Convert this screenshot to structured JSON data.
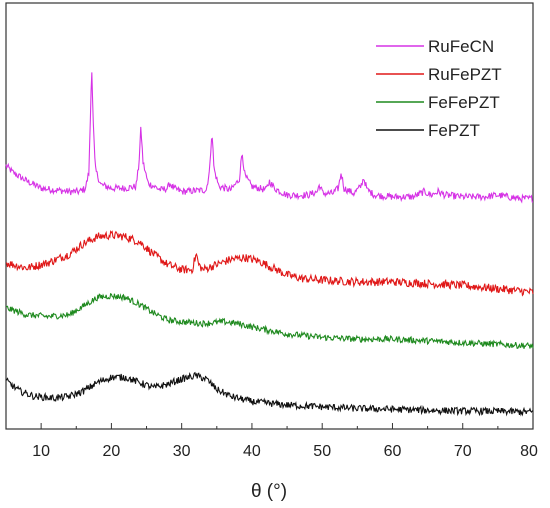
{
  "chart_data": {
    "type": "line",
    "title": "",
    "xlabel": "θ (°)",
    "ylabel": "",
    "xlim": [
      5,
      80
    ],
    "ylim": [
      0,
      100
    ],
    "x_ticks": [
      10,
      20,
      30,
      40,
      50,
      60,
      70,
      80
    ],
    "y_ticks": [],
    "grid": false,
    "legend_position": "top-right",
    "series": [
      {
        "name": "RuFeCN",
        "color": "#d633e6",
        "noise": 1.0,
        "points": [
          [
            5,
            71
          ],
          [
            6,
            69
          ],
          [
            8,
            66.5
          ],
          [
            10,
            64.5
          ],
          [
            12,
            64
          ],
          [
            14,
            63.5
          ],
          [
            15.5,
            63.5
          ],
          [
            16.3,
            64.5
          ],
          [
            16.8,
            69
          ],
          [
            17.0,
            84
          ],
          [
            17.2,
            100
          ],
          [
            17.4,
            84
          ],
          [
            17.7,
            70
          ],
          [
            18.5,
            65.5
          ],
          [
            20,
            64.5
          ],
          [
            22,
            64.5
          ],
          [
            23.5,
            65
          ],
          [
            23.9,
            71
          ],
          [
            24.2,
            82
          ],
          [
            24.5,
            72
          ],
          [
            25.2,
            66
          ],
          [
            27,
            64
          ],
          [
            28,
            64.5
          ],
          [
            28.3,
            66
          ],
          [
            28.8,
            64.5
          ],
          [
            30,
            63.5
          ],
          [
            33.5,
            64
          ],
          [
            34.0,
            70
          ],
          [
            34.3,
            81.5
          ],
          [
            34.6,
            70
          ],
          [
            35.3,
            65
          ],
          [
            37,
            64
          ],
          [
            38.2,
            67
          ],
          [
            38.6,
            75
          ],
          [
            39.0,
            68
          ],
          [
            40,
            65
          ],
          [
            42,
            64
          ],
          [
            42.5,
            66.5
          ],
          [
            43.2,
            64.5
          ],
          [
            45,
            62.5
          ],
          [
            48,
            62.5
          ],
          [
            49.3,
            63.5
          ],
          [
            49.6,
            65.5
          ],
          [
            50.1,
            63
          ],
          [
            51.5,
            63
          ],
          [
            52.3,
            64.5
          ],
          [
            52.7,
            69
          ],
          [
            53.1,
            64.5
          ],
          [
            54.5,
            63
          ],
          [
            55.5,
            65
          ],
          [
            55.9,
            67.5
          ],
          [
            56.4,
            64
          ],
          [
            57.5,
            62.5
          ],
          [
            60,
            62
          ],
          [
            63,
            62
          ],
          [
            64.5,
            63.5
          ],
          [
            65.5,
            62.5
          ],
          [
            66.5,
            63.5
          ],
          [
            67.5,
            62.5
          ],
          [
            70,
            62
          ],
          [
            73,
            62
          ],
          [
            75,
            62.5
          ],
          [
            78,
            61.5
          ],
          [
            80,
            61.5
          ]
        ]
      },
      {
        "name": "RuFePZT",
        "color": "#e01818",
        "noise": 1.2,
        "points": [
          [
            5,
            43
          ],
          [
            8,
            41.5
          ],
          [
            11,
            43
          ],
          [
            14,
            45.5
          ],
          [
            16,
            48.5
          ],
          [
            18,
            50.5
          ],
          [
            20,
            51
          ],
          [
            22,
            50.5
          ],
          [
            24,
            49
          ],
          [
            26,
            45.5
          ],
          [
            28,
            42.5
          ],
          [
            30,
            41
          ],
          [
            31.5,
            41
          ],
          [
            31.8,
            43.5
          ],
          [
            32.1,
            45.5
          ],
          [
            32.4,
            42.5
          ],
          [
            33,
            41
          ],
          [
            35,
            42.5
          ],
          [
            37,
            44
          ],
          [
            39,
            44.5
          ],
          [
            41,
            43.5
          ],
          [
            43,
            41.5
          ],
          [
            45,
            39.5
          ],
          [
            47,
            38.5
          ],
          [
            50,
            38
          ],
          [
            55,
            37.5
          ],
          [
            60,
            37.5
          ],
          [
            65,
            37
          ],
          [
            70,
            36.5
          ],
          [
            75,
            35.5
          ],
          [
            80,
            34.5
          ]
        ]
      },
      {
        "name": "FeFePZT",
        "color": "#1f8a1f",
        "noise": 0.9,
        "points": [
          [
            5,
            30
          ],
          [
            8,
            28
          ],
          [
            11,
            27.5
          ],
          [
            14,
            28
          ],
          [
            16,
            30.5
          ],
          [
            18,
            33
          ],
          [
            20,
            33.5
          ],
          [
            22,
            33
          ],
          [
            24,
            31
          ],
          [
            26,
            28.5
          ],
          [
            28,
            26.5
          ],
          [
            30,
            26
          ],
          [
            33,
            25.5
          ],
          [
            36,
            26
          ],
          [
            38,
            25.5
          ],
          [
            40,
            24.5
          ],
          [
            45,
            22.5
          ],
          [
            50,
            21.5
          ],
          [
            55,
            21
          ],
          [
            60,
            21
          ],
          [
            65,
            20.5
          ],
          [
            70,
            20
          ],
          [
            75,
            19.5
          ],
          [
            80,
            19
          ]
        ]
      },
      {
        "name": "FePZT",
        "color": "#111111",
        "noise": 1.0,
        "points": [
          [
            5,
            9
          ],
          [
            7,
            6
          ],
          [
            9,
            4.5
          ],
          [
            12,
            4
          ],
          [
            14,
            4.5
          ],
          [
            16,
            6
          ],
          [
            18,
            8.5
          ],
          [
            20,
            10
          ],
          [
            22,
            10
          ],
          [
            24,
            8.5
          ],
          [
            26,
            7
          ],
          [
            28,
            8
          ],
          [
            30,
            9.5
          ],
          [
            32,
            10.5
          ],
          [
            33.5,
            9.5
          ],
          [
            35,
            6.5
          ],
          [
            37,
            4.5
          ],
          [
            40,
            3
          ],
          [
            45,
            2
          ],
          [
            50,
            1.5
          ],
          [
            55,
            1
          ],
          [
            60,
            0.8
          ],
          [
            65,
            0.5
          ],
          [
            70,
            0.3
          ],
          [
            75,
            0.2
          ],
          [
            80,
            0
          ]
        ]
      }
    ]
  }
}
